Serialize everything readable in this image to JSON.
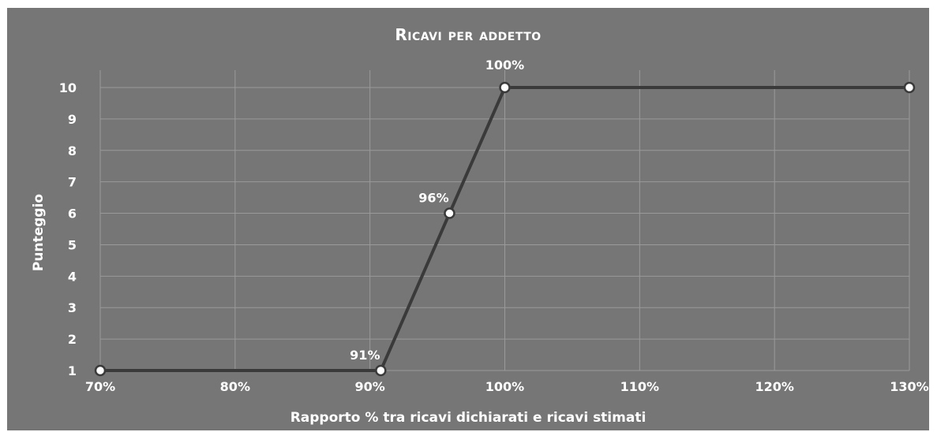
{
  "chart_data": {
    "type": "line",
    "title": "Ricavi per addetto",
    "xlabel": "Rapporto % tra ricavi dichiarati e ricavi stimati",
    "ylabel": "Punteggio",
    "xlim": [
      70,
      130
    ],
    "ylim": [
      1,
      10
    ],
    "x_ticks": [
      "70%",
      "80%",
      "90%",
      "100%",
      "110%",
      "120%",
      "130%"
    ],
    "y_ticks": [
      "1",
      "2",
      "3",
      "4",
      "5",
      "6",
      "7",
      "8",
      "9",
      "10"
    ],
    "grid": true,
    "series": [
      {
        "x": [
          70,
          90.8,
          95.9,
          100,
          130
        ],
        "y": [
          1,
          1,
          6,
          10,
          10
        ]
      }
    ],
    "data_labels": [
      {
        "x": 90.8,
        "y": 1,
        "text": "91%"
      },
      {
        "x": 95.9,
        "y": 6,
        "text": "96%"
      },
      {
        "x": 100,
        "y": 10,
        "text": "100%"
      }
    ],
    "colors": {
      "background": "#767676",
      "grid": "#9a9a9a",
      "line": "#3a3a3a",
      "marker_fill": "#ffffff",
      "marker_stroke": "#3a3a3a",
      "text": "#ffffff"
    }
  }
}
